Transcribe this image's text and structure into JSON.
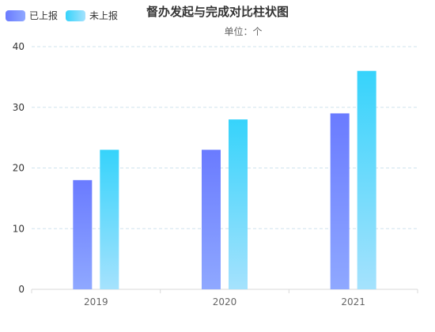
{
  "chart_data": {
    "type": "bar",
    "title": "督办发起与完成对比柱状图",
    "subtitle": "单位：个",
    "categories": [
      "2019",
      "2020",
      "2021"
    ],
    "series": [
      {
        "name": "已上报",
        "values": [
          18,
          23,
          29
        ],
        "color_top": "#6a7bff",
        "color_bottom": "#8fa8ff"
      },
      {
        "name": "未上报",
        "values": [
          23,
          28,
          36
        ],
        "color_top": "#36d3fb",
        "color_bottom": "#a5e2fd"
      }
    ],
    "yticks": [
      "0",
      "10",
      "20",
      "30",
      "40"
    ],
    "ylim": [
      0,
      40
    ],
    "grid": true,
    "legend_position": "top-left"
  }
}
